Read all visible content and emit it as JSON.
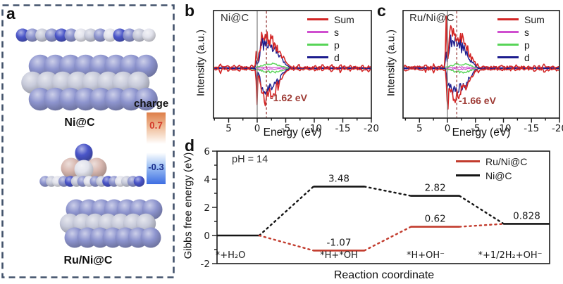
{
  "panel_a": {
    "letter": "a",
    "border_color": "#42526b",
    "structures": [
      {
        "name": "Ni@C"
      },
      {
        "name": "Ru/Ni@C"
      }
    ],
    "colorbar": {
      "title": "charge",
      "max_label": "0.7",
      "min_label": "-0.3",
      "max_text_color": "#d43a2a",
      "min_text_color": "#1c2f8c"
    },
    "atom_colors": {
      "peri": "#8d94ce",
      "silver": "#c7cada",
      "white": "#e2e3ec",
      "dblue": "#4a55c8",
      "pink": "#d8b8b0"
    }
  },
  "chart_data": [
    {
      "id": "b",
      "type": "line",
      "panel_letter": "b",
      "title": "Ni@C",
      "xlabel": "Energy (eV)",
      "ylabel": "Intensity (a.u.)",
      "x_direction": "reversed",
      "xlim": [
        7.7,
        -20
      ],
      "xticks": [
        5,
        0,
        -5,
        -10,
        -15,
        -20
      ],
      "fermi_level": 0,
      "d_band_center": -1.62,
      "annotation": "-1.62 eV",
      "annotation_color": "#9e3b35",
      "legend_position": "top-right",
      "legend": [
        {
          "label": "Sum",
          "color": "#d32525"
        },
        {
          "label": "s",
          "color": "#cf4fcf"
        },
        {
          "label": "p",
          "color": "#57d457"
        },
        {
          "label": "d",
          "color": "#1c1c8e"
        }
      ],
      "dos_profile": {
        "seed": 7,
        "baseline_noise": 2.6,
        "lump_max": 5,
        "up": {
          "spike": [
            0.15,
            0.09,
            26
          ],
          "peaks": [
            [
              -0.7,
              0.33,
              30
            ],
            [
              -1.35,
              0.5,
              38
            ],
            [
              -2.2,
              0.55,
              30
            ],
            [
              -3.0,
              0.5,
              25
            ],
            [
              -3.9,
              0.55,
              17
            ],
            [
              -4.7,
              0.5,
              8
            ]
          ]
        },
        "dn": {
          "spike": [
            0.05,
            0.1,
            58
          ],
          "peaks": [
            [
              -0.9,
              0.4,
              26
            ],
            [
              -1.6,
              0.5,
              33
            ],
            [
              -2.5,
              0.55,
              27
            ],
            [
              -3.3,
              0.5,
              21
            ],
            [
              -4.2,
              0.55,
              13
            ]
          ]
        }
      }
    },
    {
      "id": "c",
      "type": "line",
      "panel_letter": "c",
      "title": "Ru/Ni@C",
      "xlabel": "Energy (eV)",
      "ylabel": "Intensity (a.u.)",
      "x_direction": "reversed",
      "xlim": [
        7.9,
        -20
      ],
      "xticks": [
        5,
        0,
        -5,
        -10,
        -15,
        -20
      ],
      "fermi_level": 0,
      "d_band_center": -1.66,
      "annotation": "-1.66 eV",
      "annotation_color": "#9e3b35",
      "legend_position": "top-right",
      "legend": [
        {
          "label": "Sum",
          "color": "#d32525"
        },
        {
          "label": "s",
          "color": "#cf4fcf"
        },
        {
          "label": "p",
          "color": "#57d457"
        },
        {
          "label": "d",
          "color": "#1c1c8e"
        }
      ],
      "dos_profile": {
        "seed": 13,
        "baseline_noise": 3.0,
        "lump_max": 6,
        "up": {
          "spike": [
            0.25,
            0.1,
            70
          ],
          "peaks": [
            [
              -0.55,
              0.3,
              52
            ],
            [
              -1.4,
              0.5,
              46
            ],
            [
              -2.3,
              0.55,
              34
            ],
            [
              -3.2,
              0.5,
              24
            ],
            [
              -4.2,
              0.55,
              13
            ]
          ]
        },
        "dn": {
          "spike": [
            0.0,
            0.12,
            62
          ],
          "peaks": [
            [
              -0.5,
              0.3,
              30
            ],
            [
              -1.3,
              0.5,
              40
            ],
            [
              -2.3,
              0.55,
              29
            ],
            [
              -3.2,
              0.5,
              21
            ],
            [
              -4.1,
              0.55,
              12
            ]
          ]
        }
      }
    },
    {
      "id": "d",
      "type": "step",
      "panel_letter": "d",
      "xlabel": "Reaction coordinate",
      "ylabel": "Gibbs free energy (eV)",
      "note": "pH = 14",
      "ylim": [
        -2,
        6
      ],
      "yticks": [
        6,
        4,
        2,
        0,
        -2
      ],
      "categories": [
        "*+H₂O",
        "*H+*OH",
        "*H+OH⁻",
        "*+1/2H₂+OH⁻"
      ],
      "series": [
        {
          "name": "Ru/Ni@C",
          "color": "#c23b2d",
          "values": [
            0,
            -1.07,
            0.62,
            0.828
          ],
          "labels": [
            "",
            "-1.07",
            "0.62",
            ""
          ]
        },
        {
          "name": "Ni@C",
          "color": "#141414",
          "values": [
            0,
            3.48,
            2.82,
            0.828
          ],
          "labels": [
            "",
            "3.48",
            "2.82",
            "0.828"
          ]
        }
      ]
    }
  ]
}
